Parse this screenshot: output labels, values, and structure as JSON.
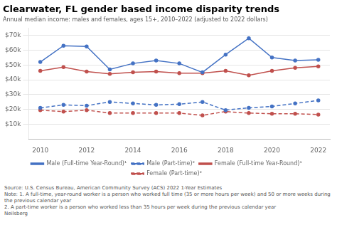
{
  "chart_data": {
    "type": "line",
    "title": "Clearwater, FL gender based income disparity trends",
    "subtitle": "Annual median income: males and females, ages 15+, 2010–2022 (adjusted to 2022 dollars)",
    "x": [
      2010,
      2011,
      2012,
      2013,
      2014,
      2015,
      2016,
      2017,
      2018,
      2019,
      2020,
      2021,
      2022
    ],
    "series": [
      {
        "name": "Male (Full-time Year-Round)¹",
        "color": "#4472c4",
        "line_style": "solid",
        "marker": "circle",
        "values": [
          52000,
          63000,
          62500,
          47000,
          51000,
          53000,
          51000,
          45000,
          57000,
          68000,
          55000,
          53000,
          53500
        ]
      },
      {
        "name": "Male (Part-time)²",
        "color": "#4472c4",
        "line_style": "dashed",
        "marker": "circle",
        "values": [
          21000,
          23000,
          22500,
          25000,
          24000,
          23000,
          23500,
          25000,
          19500,
          21000,
          22000,
          24000,
          26000
        ]
      },
      {
        "name": "Female (Full-time Year-Round)¹",
        "color": "#c0504d",
        "line_style": "solid",
        "marker": "circle",
        "values": [
          46000,
          48500,
          45500,
          44000,
          45000,
          45500,
          44500,
          44500,
          46000,
          43000,
          46000,
          48000,
          49000
        ]
      },
      {
        "name": "Female (Part-time)²",
        "color": "#c0504d",
        "line_style": "dashed",
        "marker": "circle",
        "values": [
          19500,
          18500,
          19500,
          17500,
          17500,
          17500,
          17500,
          16000,
          18500,
          17500,
          17000,
          17000,
          16500
        ]
      }
    ],
    "xlim": [
      2009.5,
      2022.5
    ],
    "xticks": [
      2010,
      2012,
      2014,
      2016,
      2018,
      2020,
      2022
    ],
    "ylim": [
      0,
      75000
    ],
    "yticks": [
      {
        "value": 10000,
        "label": "$10k"
      },
      {
        "value": 20000,
        "label": "$20k"
      },
      {
        "value": 30000,
        "label": "$30k"
      },
      {
        "value": 40000,
        "label": "$40k"
      },
      {
        "value": 50000,
        "label": "$50k"
      },
      {
        "value": 60000,
        "label": "$60k"
      },
      {
        "value": 70000,
        "label": "$70k"
      }
    ],
    "grid": true,
    "legend": "bottom",
    "annotations": [
      "Source: U.S. Census Bureau, American Community Survey (ACS) 2022 1-Year Estimates",
      "Note: 1. A full-time, year-round worker is a person who worked full time (35 or more hours per week) and 50 or more weeks during the previous calendar year",
      "2. A part-time worker is a person who worked less than 35 hours per week during the previous calendar year",
      "Neilsberg"
    ]
  }
}
